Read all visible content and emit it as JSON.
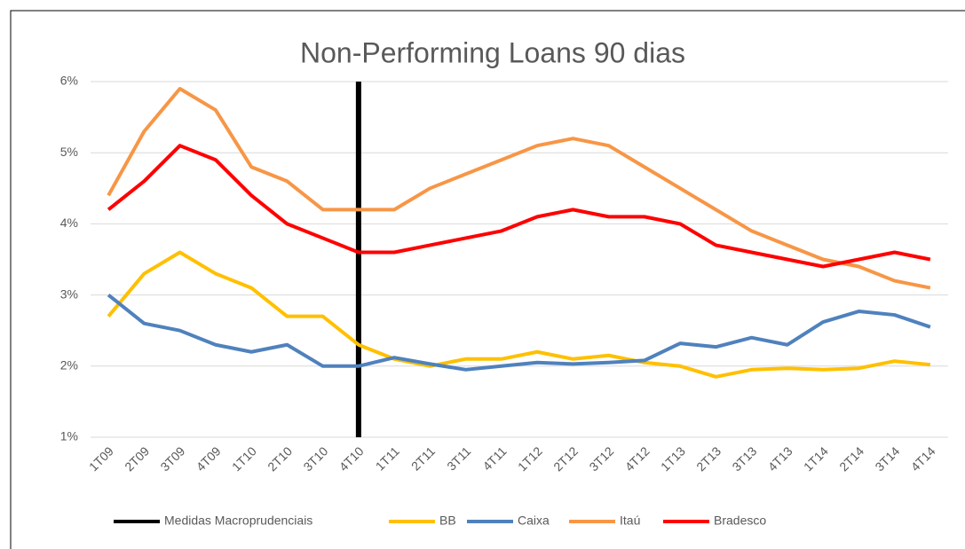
{
  "chart_data": {
    "type": "line",
    "title": "Non-Performing  Loans 90 dias",
    "categories": [
      "1T09",
      "2T09",
      "3T09",
      "4T09",
      "1T10",
      "2T10",
      "3T10",
      "4T10",
      "1T11",
      "2T11",
      "3T11",
      "4T11",
      "1T12",
      "2T12",
      "3T12",
      "4T12",
      "1T13",
      "2T13",
      "3T13",
      "4T13",
      "1T14",
      "2T14",
      "3T14",
      "4T14"
    ],
    "marker_line": {
      "name": "Medidas Macroprudenciais",
      "category": "4T10",
      "color": "#000000"
    },
    "series": [
      {
        "name": "BB",
        "color": "#ffc000",
        "values": [
          2.7,
          3.3,
          3.6,
          3.3,
          3.1,
          2.7,
          2.7,
          2.3,
          2.1,
          2.0,
          2.1,
          2.1,
          2.2,
          2.1,
          2.15,
          2.05,
          2.0,
          1.85,
          1.95,
          1.97,
          1.95,
          1.97,
          2.07,
          2.02
        ]
      },
      {
        "name": "Caixa",
        "color": "#4f81bd",
        "values": [
          3.0,
          2.6,
          2.5,
          2.3,
          2.2,
          2.3,
          2.0,
          2.0,
          2.12,
          2.03,
          1.95,
          2.0,
          2.05,
          2.03,
          2.05,
          2.08,
          2.32,
          2.27,
          2.4,
          2.3,
          2.62,
          2.77,
          2.72,
          2.55
        ]
      },
      {
        "name": "Itaú",
        "color": "#f79646",
        "values": [
          4.4,
          5.3,
          5.9,
          5.6,
          4.8,
          4.6,
          4.2,
          4.2,
          4.2,
          4.5,
          4.7,
          4.9,
          5.1,
          5.2,
          5.1,
          4.8,
          4.5,
          4.2,
          3.9,
          3.7,
          3.5,
          3.4,
          3.2,
          3.1
        ]
      },
      {
        "name": "Bradesco",
        "color": "#ff0000",
        "values": [
          4.2,
          4.6,
          5.1,
          4.9,
          4.4,
          4.0,
          3.8,
          3.6,
          3.6,
          3.7,
          3.8,
          3.9,
          4.1,
          4.2,
          4.1,
          4.1,
          4.0,
          3.7,
          3.6,
          3.5,
          3.4,
          3.5,
          3.6,
          3.5
        ]
      }
    ],
    "ylim": [
      1,
      6
    ],
    "yticks": [
      {
        "value": 1,
        "label": "1%"
      },
      {
        "value": 2,
        "label": "2%"
      },
      {
        "value": 3,
        "label": "3%"
      },
      {
        "value": 4,
        "label": "4%"
      },
      {
        "value": 5,
        "label": "5%"
      },
      {
        "value": 6,
        "label": "6%"
      }
    ],
    "grid": true,
    "legend": "bottom"
  }
}
